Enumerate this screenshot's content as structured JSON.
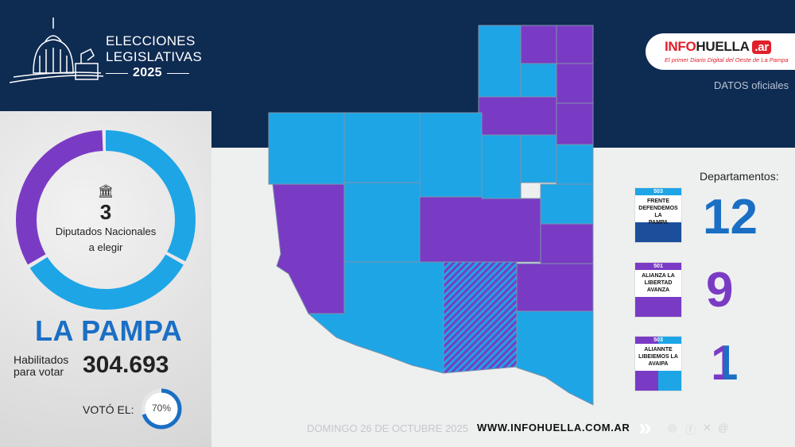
{
  "header": {
    "title_line1": "ELECCIONES",
    "title_line2": "LEGISLATIVAS",
    "year": "2025",
    "brand": {
      "info": "INF",
      "o": "O",
      "huella": "HUELLA",
      "ar": ".ar",
      "tagline": "El primer Diario Digital del Oeste de La Pampa"
    },
    "source": "DATOS oficiales"
  },
  "summary": {
    "seats": "3",
    "seats_label1": "Diputados Nacionales",
    "seats_label2": "a elegir",
    "province": "LA PAMPA",
    "voters_label1": "Habilitados",
    "voters_label2": "para votar",
    "voters": "304.693",
    "turnout_label": "VOTÓ EL:",
    "turnout": "70%",
    "turnout_value": 70
  },
  "colors": {
    "frente": "#1ea5e6",
    "libertad": "#7a3bc4",
    "navy": "#0e2b52",
    "accent": "#1a6fc4"
  },
  "departments": {
    "label": "Departamentos:",
    "parties": [
      {
        "list": "503",
        "name1": "FRENTE",
        "name2": "DEFENDEMOS LA",
        "name3": "PAMPA",
        "count": "12"
      },
      {
        "list": "501",
        "name1": "ALIANZA LA",
        "name2": "LIBERTAD",
        "name3": "AVANZA",
        "count": "9"
      },
      {
        "list": "503",
        "name1": "ALIANNTE",
        "name2": "LIBEIEMOS LA",
        "name3": "AVAIPA",
        "count": "1"
      }
    ]
  },
  "footer": {
    "date": "DOMINGO 26 DE OCTUBRE 2025",
    "url": "WWW.INFOHUELLA.COM.AR",
    "social": [
      "instagram-icon",
      "facebook-icon",
      "x-icon",
      "threads-icon"
    ]
  }
}
